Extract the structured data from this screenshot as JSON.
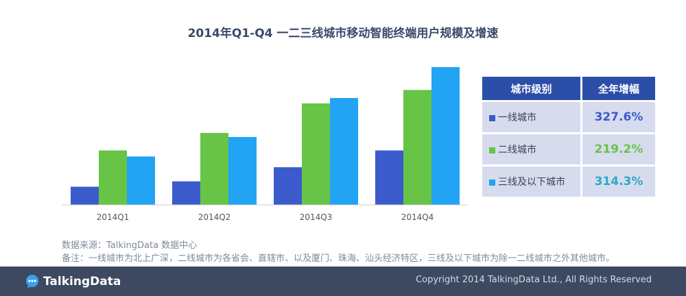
{
  "title": "2014年Q1-Q4 一二三线城市移动智能终端用户规模及增速",
  "colors": {
    "tier1": "#3b5bcc",
    "tier2": "#67c447",
    "tier3": "#22a3f3"
  },
  "chart_data": {
    "type": "bar",
    "title": "2014年Q1-Q4 一二三线城市移动智能终端用户规模及增速",
    "categories": [
      "2014Q1",
      "2014Q2",
      "2014Q3",
      "2014Q4"
    ],
    "series": [
      {
        "name": "一线城市",
        "values": [
          27,
          35,
          56,
          81
        ]
      },
      {
        "name": "二线城市",
        "values": [
          81,
          107,
          151,
          171
        ]
      },
      {
        "name": "三线及以下城市",
        "values": [
          72,
          101,
          159,
          205
        ]
      }
    ],
    "ylim": [
      0,
      210
    ],
    "grid": false,
    "legend": "right-table"
  },
  "legend_table": {
    "header": [
      "城市级别",
      "全年增幅"
    ],
    "rows": [
      {
        "label": "一线城市",
        "value": "327.6%",
        "color": "#3b5bcc"
      },
      {
        "label": "二线城市",
        "value": "219.2%",
        "color": "#67c447"
      },
      {
        "label": "三线及以下城市",
        "value": "314.3%",
        "color": "#22a3f3"
      }
    ]
  },
  "notes": {
    "source": "数据来源：TalkingData 数据中心",
    "remark": "备注：一线城市为北上广深，二线城市为各省会、直辖市、以及厦门、珠海、汕头经济特区，三线及以下城市为除一二线城市之外其他城市。"
  },
  "footer": {
    "logo_text": "TalkingData",
    "copyright": "Copyright 2014 TalkingData Ltd., All Rights Reserved"
  }
}
